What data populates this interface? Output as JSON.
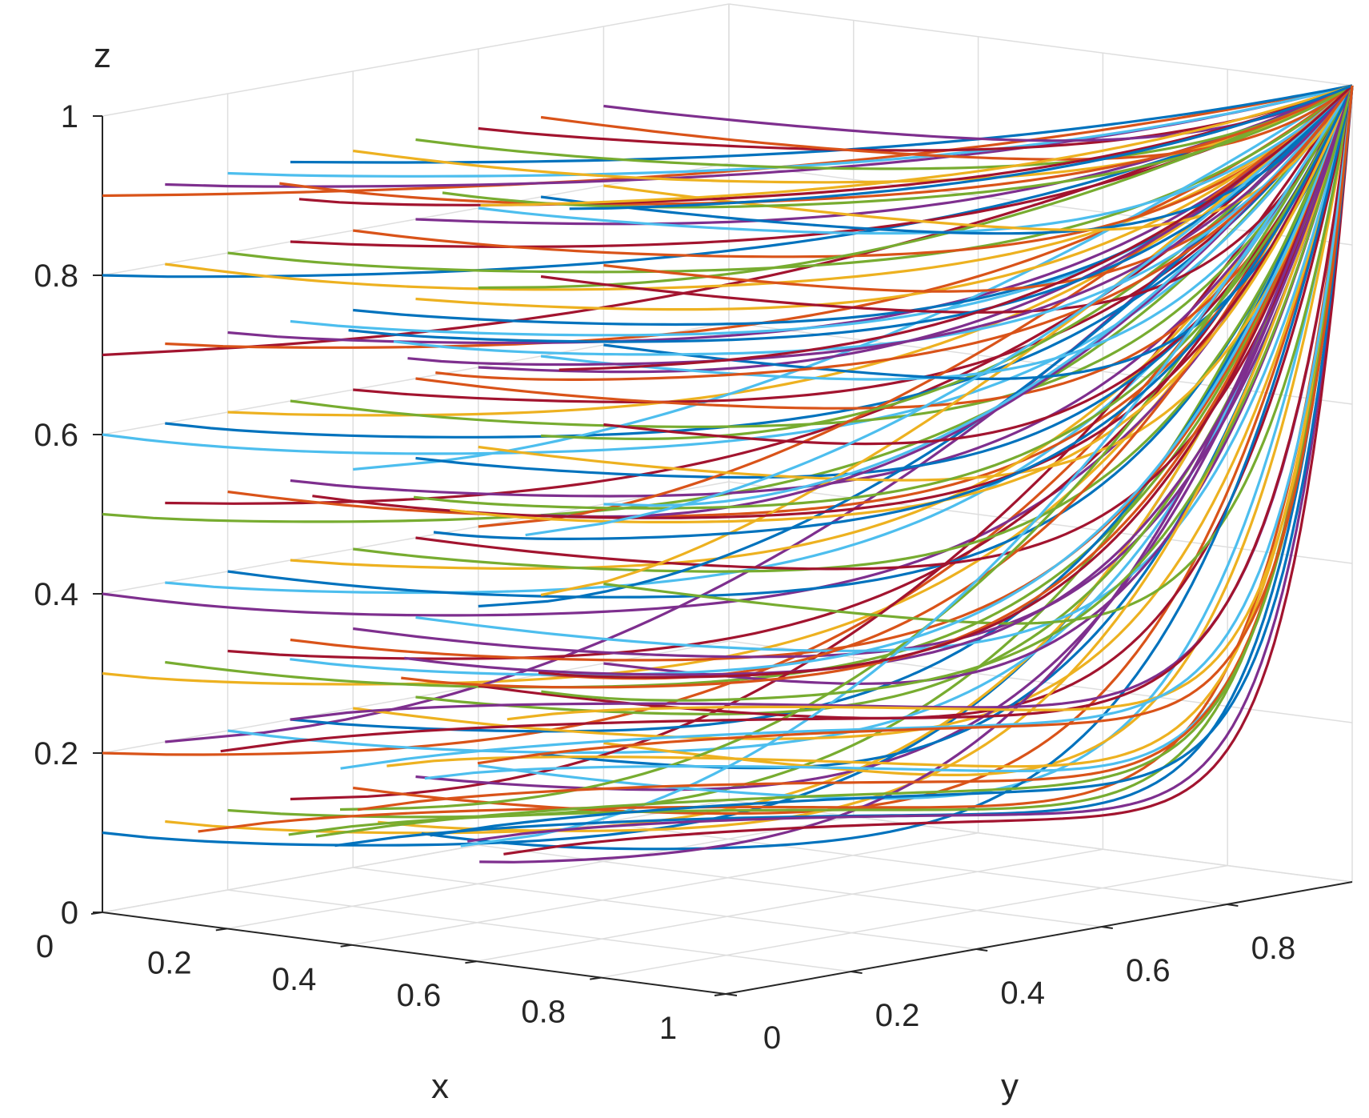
{
  "chart_data": {
    "type": "line",
    "projection": "3d",
    "title": "",
    "xlabel": "x",
    "ylabel": "y",
    "zlabel": "z",
    "xlim": [
      0,
      1
    ],
    "ylim": [
      0,
      1
    ],
    "zlim": [
      0,
      1
    ],
    "x_ticks": [
      "0",
      "0.2",
      "0.4",
      "0.6",
      "0.8",
      "1"
    ],
    "y_ticks": [
      "0",
      "0.2",
      "0.4",
      "0.6",
      "0.8"
    ],
    "z_ticks": [
      "0",
      "0.2",
      "0.4",
      "0.6",
      "0.8",
      "1"
    ],
    "grid": true,
    "legend": "none",
    "converge_point": {
      "x": 1,
      "y": 1,
      "z": 1
    },
    "start_x_values": [
      0.1,
      0.2,
      0.3,
      0.4,
      0.5
    ],
    "start_y_values": [
      0.0,
      0.1,
      0.2,
      0.3,
      0.4,
      0.5,
      0.6,
      0.7,
      0.8
    ],
    "start_z_values": [
      0.1,
      0.2,
      0.3,
      0.4,
      0.5,
      0.6,
      0.7,
      0.8,
      0.9
    ],
    "colors": [
      "#0072BD",
      "#D95319",
      "#EDB120",
      "#7E2F8E",
      "#77AC30",
      "#4DBEEE",
      "#A2142F"
    ]
  }
}
